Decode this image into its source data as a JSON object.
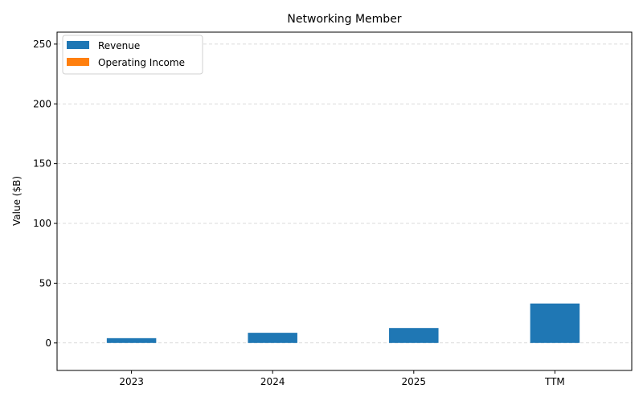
{
  "chart_data": {
    "type": "bar",
    "title": "Networking Member",
    "xlabel": "",
    "ylabel": "Value ($B)",
    "categories": [
      "2023",
      "2024",
      "2025",
      "TTM"
    ],
    "series": [
      {
        "name": "Revenue",
        "color": "#1f77b4",
        "values": [
          4.0,
          8.5,
          12.5,
          33.0
        ]
      },
      {
        "name": "Operating Income",
        "color": "#ff7f0e",
        "values": [
          0,
          0,
          0,
          0
        ]
      }
    ],
    "ylim": [
      -23,
      260
    ],
    "yticks": [
      0,
      50,
      100,
      150,
      200,
      250
    ],
    "grid": "y-dashed",
    "legend_position": "top-left"
  }
}
